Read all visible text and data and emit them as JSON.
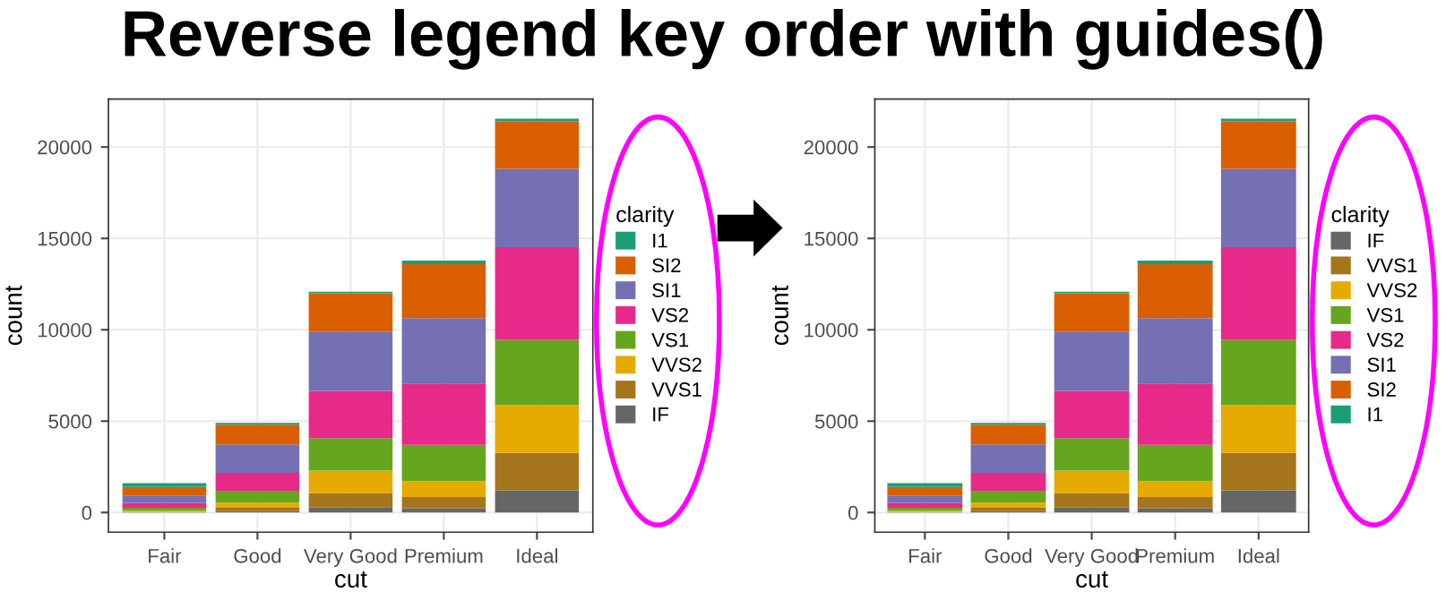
{
  "chart_data": [
    {
      "type": "bar",
      "title": "Reverse legend key order with guides()",
      "xlabel": "cut",
      "ylabel": "count",
      "legend_title": "clarity",
      "stacked": true,
      "legend": "right",
      "grid": true,
      "categories": [
        "Fair",
        "Good",
        "Very Good",
        "Premium",
        "Ideal"
      ],
      "ylim": [
        -1078,
        22629
      ],
      "yticks": [
        0,
        5000,
        10000,
        15000,
        20000
      ],
      "series": [
        {
          "name": "IF",
          "color": "#666666",
          "values": [
            9,
            71,
            268,
            230,
            1212
          ]
        },
        {
          "name": "VVS1",
          "color": "#a6761d",
          "values": [
            17,
            186,
            789,
            616,
            2047
          ]
        },
        {
          "name": "VVS2",
          "color": "#e6ab02",
          "values": [
            69,
            286,
            1235,
            870,
            2606
          ]
        },
        {
          "name": "VS1",
          "color": "#66a61e",
          "values": [
            170,
            648,
            1775,
            1989,
            3589
          ]
        },
        {
          "name": "VS2",
          "color": "#e7298a",
          "values": [
            261,
            978,
            2591,
            3357,
            5071
          ]
        },
        {
          "name": "SI1",
          "color": "#7570b3",
          "values": [
            408,
            1560,
            3240,
            3575,
            4282
          ]
        },
        {
          "name": "SI2",
          "color": "#d95f02",
          "values": [
            466,
            1081,
            2100,
            2949,
            2598
          ]
        },
        {
          "name": "I1",
          "color": "#1b9e77",
          "values": [
            210,
            96,
            84,
            205,
            146
          ]
        }
      ]
    },
    {
      "type": "bar",
      "xlabel": "cut",
      "ylabel": "count",
      "legend_title": "clarity",
      "stacked": true,
      "legend": "right",
      "grid": true,
      "categories": [
        "Fair",
        "Good",
        "Very Good",
        "Premium",
        "Ideal"
      ],
      "ylim": [
        -1078,
        22629
      ],
      "yticks": [
        0,
        5000,
        10000,
        15000,
        20000
      ],
      "series": [
        {
          "name": "IF",
          "color": "#666666",
          "values": [
            9,
            71,
            268,
            230,
            1212
          ]
        },
        {
          "name": "VVS1",
          "color": "#a6761d",
          "values": [
            17,
            186,
            789,
            616,
            2047
          ]
        },
        {
          "name": "VVS2",
          "color": "#e6ab02",
          "values": [
            69,
            286,
            1235,
            870,
            2606
          ]
        },
        {
          "name": "VS1",
          "color": "#66a61e",
          "values": [
            170,
            648,
            1775,
            1989,
            3589
          ]
        },
        {
          "name": "VS2",
          "color": "#e7298a",
          "values": [
            261,
            978,
            2591,
            3357,
            5071
          ]
        },
        {
          "name": "SI1",
          "color": "#7570b3",
          "values": [
            408,
            1560,
            3240,
            3575,
            4282
          ]
        },
        {
          "name": "SI2",
          "color": "#d95f02",
          "values": [
            466,
            1081,
            2100,
            2949,
            2598
          ]
        },
        {
          "name": "I1",
          "color": "#1b9e77",
          "values": [
            210,
            96,
            84,
            205,
            146
          ]
        }
      ]
    }
  ]
}
